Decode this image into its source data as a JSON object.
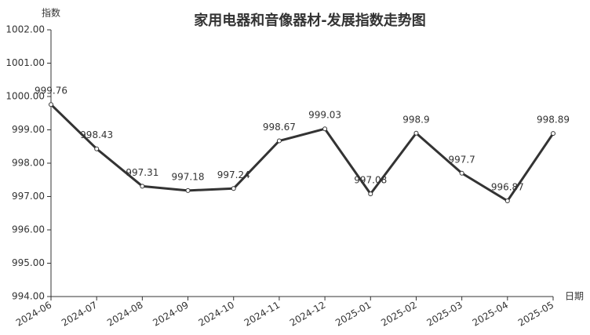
{
  "chart_data": {
    "type": "line",
    "title": "家用电器和音像器材-发展指数走势图",
    "y_label": "指数",
    "x_label": "日期",
    "categories": [
      "2024-06",
      "2024-07",
      "2024-08",
      "2024-09",
      "2024-10",
      "2024-11",
      "2024-12",
      "2025-01",
      "2025-02",
      "2025-03",
      "2025-04",
      "2025-05"
    ],
    "values": [
      999.76,
      998.43,
      997.31,
      997.18,
      997.24,
      998.67,
      999.03,
      997.08,
      998.9,
      997.7,
      996.87,
      998.89
    ],
    "color": "#333333",
    "ylim": [
      994,
      1002
    ],
    "yticks": [
      {
        "value": 994,
        "label": "994.00"
      },
      {
        "value": 995,
        "label": "995.00"
      },
      {
        "value": 996,
        "label": "996.00"
      },
      {
        "value": 997,
        "label": "997.00"
      },
      {
        "value": 998,
        "label": "998.00"
      },
      {
        "value": 999,
        "label": "999.00"
      },
      {
        "value": 1000,
        "label": "1000.00"
      },
      {
        "value": 1001,
        "label": "1001.00"
      },
      {
        "value": 1002,
        "label": "1002.00"
      }
    ],
    "grid": false
  }
}
